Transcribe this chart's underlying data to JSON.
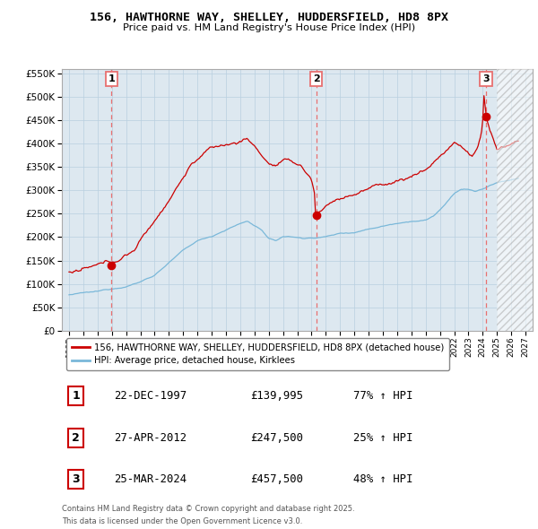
{
  "title": "156, HAWTHORNE WAY, SHELLEY, HUDDERSFIELD, HD8 8PX",
  "subtitle": "Price paid vs. HM Land Registry's House Price Index (HPI)",
  "legend_line1": "156, HAWTHORNE WAY, SHELLEY, HUDDERSFIELD, HD8 8PX (detached house)",
  "legend_line2": "HPI: Average price, detached house, Kirklees",
  "transactions": [
    {
      "num": 1,
      "date": "22-DEC-1997",
      "price": 139995,
      "year": 1997.97,
      "hpi_pct": "77% ↑ HPI"
    },
    {
      "num": 2,
      "date": "27-APR-2012",
      "price": 247500,
      "year": 2012.32,
      "hpi_pct": "25% ↑ HPI"
    },
    {
      "num": 3,
      "date": "25-MAR-2024",
      "price": 457500,
      "year": 2024.23,
      "hpi_pct": "48% ↑ HPI"
    }
  ],
  "hpi_color": "#7ab8d9",
  "price_color": "#cc0000",
  "marker_color": "#cc0000",
  "vline_color": "#e87070",
  "chart_bg": "#dde8f0",
  "background_color": "#ffffff",
  "grid_color": "#b8cfe0",
  "ylim": [
    0,
    560000
  ],
  "xlim": [
    1994.5,
    2027.5
  ],
  "yticks": [
    0,
    50000,
    100000,
    150000,
    200000,
    250000,
    300000,
    350000,
    400000,
    450000,
    500000,
    550000
  ],
  "xticks": [
    1995,
    1996,
    1997,
    1998,
    1999,
    2000,
    2001,
    2002,
    2003,
    2004,
    2005,
    2006,
    2007,
    2008,
    2009,
    2010,
    2011,
    2012,
    2013,
    2014,
    2015,
    2016,
    2017,
    2018,
    2019,
    2020,
    2021,
    2022,
    2023,
    2024,
    2025,
    2026,
    2027
  ],
  "footer_line1": "Contains HM Land Registry data © Crown copyright and database right 2025.",
  "footer_line2": "This data is licensed under the Open Government Licence v3.0."
}
